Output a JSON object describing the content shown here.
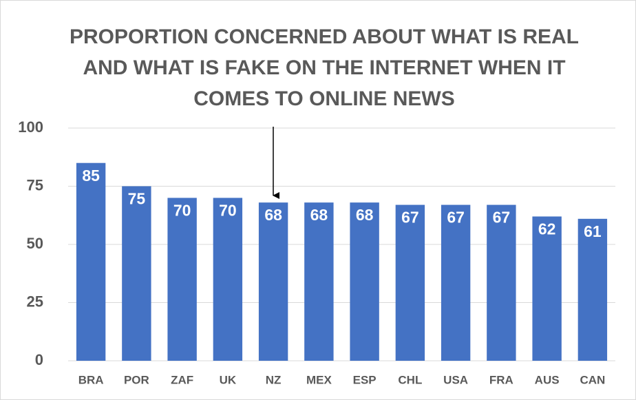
{
  "chart_data": {
    "type": "bar",
    "title": "PROPORTION CONCERNED ABOUT WHAT IS REAL AND WHAT IS FAKE ON THE INTERNET WHEN IT COMES TO ONLINE NEWS",
    "categories": [
      "BRA",
      "POR",
      "ZAF",
      "UK",
      "NZ",
      "MEX",
      "ESP",
      "CHL",
      "USA",
      "FRA",
      "AUS",
      "CAN"
    ],
    "values": [
      85,
      75,
      70,
      70,
      68,
      68,
      68,
      67,
      67,
      67,
      62,
      61
    ],
    "color": "#4472c4",
    "ylim": [
      0,
      100
    ],
    "yticks": [
      0,
      25,
      50,
      75,
      100
    ],
    "grid": true
  }
}
